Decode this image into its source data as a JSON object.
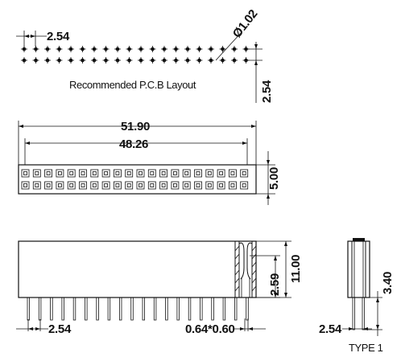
{
  "pcb_layout": {
    "pitch_label": "2.54",
    "hole_label": "Ø1.02",
    "row_pitch_label": "2.54",
    "caption": "Recommended P.C.B Layout"
  },
  "top_view": {
    "overall_length_label": "51.90",
    "pin_span_label": "48.26",
    "width_label": "5.00"
  },
  "side_view": {
    "height_label": "11.00",
    "contact_label": "2.59",
    "pitch_label": "2.54",
    "pin_size_label": "0.64*0.60"
  },
  "end_view": {
    "tail_length_label": "3.40",
    "pitch_label": "2.54",
    "type_label": "TYPE 1"
  },
  "connector": {
    "pins_per_row": 20,
    "rows": 2
  }
}
